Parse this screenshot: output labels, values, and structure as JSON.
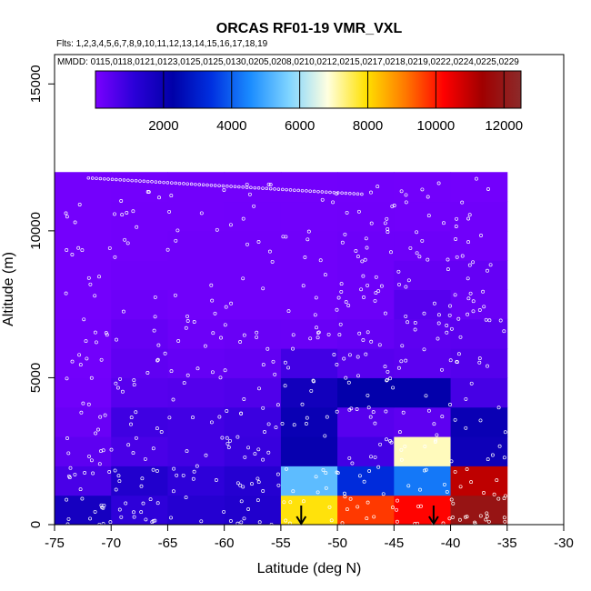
{
  "chart_data": {
    "type": "heatmap",
    "title": "ORCAS RF01-19 VMR_VXL",
    "flights_label": "Flts: 1,2,3,4,5,6,7,8,9,10,11,12,13,14,15,16,17,18,19",
    "dates_label": "MMDD: 0115,0118,0121,0123,0125,0125,0130,0205,0208,0210,0212,0215,0217,0218,0219,0222,0224,0225,0229",
    "xlabel": "Latitude (deg N)",
    "ylabel": "Altitude (m)",
    "xlim": [
      -75,
      -30
    ],
    "ylim": [
      0,
      16000
    ],
    "x_ticks": [
      -75,
      -70,
      -65,
      -60,
      -55,
      -50,
      -45,
      -40,
      -35,
      -30
    ],
    "y_ticks": [
      0,
      5000,
      10000,
      15000
    ],
    "colorbar": {
      "range": [
        0,
        12500
      ],
      "ticks": [
        2000,
        4000,
        6000,
        8000,
        10000,
        12000
      ],
      "colors": [
        "#7a00ff",
        "#2b00d8",
        "#0000a8",
        "#0030e0",
        "#1a8cff",
        "#7fd4ff",
        "#ffffe0",
        "#ffe100",
        "#ff7a00",
        "#ff0000",
        "#a00000",
        "#8c2a2a"
      ]
    },
    "bin_width_deg": 5,
    "bin_height_m": 1000,
    "bin_x_starts": [
      -75,
      -70,
      -65,
      -60,
      -55,
      -50,
      -45,
      -40
    ],
    "bin_alt_rows": [
      {
        "alt": 0,
        "values": [
          1700,
          1100,
          1300,
          1400,
          7900,
          9700,
          10200,
          11900
        ]
      },
      {
        "alt": 1000,
        "values": [
          700,
          1400,
          1100,
          1300,
          5300,
          3300,
          4300,
          11000
        ]
      },
      {
        "alt": 2000,
        "values": [
          400,
          700,
          800,
          950,
          2100,
          800,
          7000,
          1900
        ]
      },
      {
        "alt": 3000,
        "values": [
          250,
          850,
          800,
          900,
          2000,
          500,
          400,
          2000
        ]
      },
      {
        "alt": 4000,
        "values": [
          150,
          500,
          550,
          600,
          1800,
          2200,
          2200,
          750
        ]
      },
      {
        "alt": 5000,
        "values": [
          120,
          380,
          300,
          350,
          800,
          500,
          450,
          550
        ]
      },
      {
        "alt": 6000,
        "values": [
          110,
          300,
          200,
          250,
          250,
          300,
          400,
          450
        ]
      },
      {
        "alt": 7000,
        "values": [
          100,
          180,
          150,
          150,
          150,
          200,
          500,
          250
        ]
      },
      {
        "alt": 8000,
        "values": [
          100,
          150,
          150,
          150,
          150,
          180,
          300,
          300
        ]
      },
      {
        "alt": 9000,
        "values": [
          90,
          120,
          140,
          150,
          150,
          180,
          180,
          150
        ]
      },
      {
        "alt": 10000,
        "values": [
          90,
          110,
          120,
          130,
          130,
          150,
          130,
          150
        ]
      },
      {
        "alt": 11000,
        "values": [
          90,
          100,
          110,
          120,
          120,
          130,
          120,
          100
        ]
      }
    ],
    "arrows_at_lat": [
      -53.2,
      -41.5
    ]
  }
}
